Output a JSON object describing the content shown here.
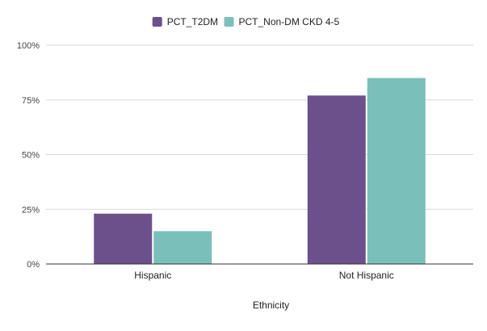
{
  "chart_data": {
    "type": "bar",
    "title": "",
    "xlabel": "Ethnicity",
    "ylabel": "",
    "categories": [
      "Hispanic",
      "Not Hispanic"
    ],
    "series": [
      {
        "name": "PCT_T2DM",
        "color": "#6c508c",
        "values": [
          23,
          77
        ]
      },
      {
        "name": "PCT_Non-DM CKD 4-5",
        "color": "#7bbfba",
        "values": [
          15,
          85
        ]
      }
    ],
    "ylim": [
      0,
      100
    ],
    "yticks": [
      0,
      25,
      50,
      75,
      100
    ],
    "ytick_labels": [
      "0%",
      "25%",
      "50%",
      "75%",
      "100%"
    ],
    "grid": true,
    "legend_position": "top-center"
  }
}
